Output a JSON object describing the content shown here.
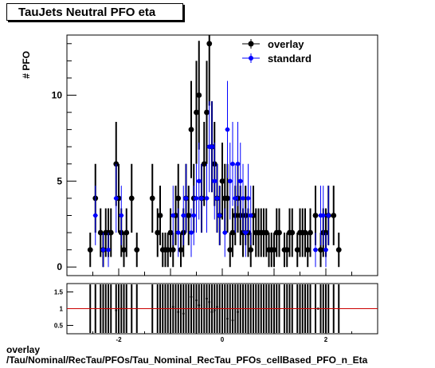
{
  "title": "TauJets Neutral PFO eta",
  "footer": {
    "line1": "overlay",
    "line2": "/Tau/Nominal/RecTau/PFOs/Tau_Nominal_RecTau_PFOs_cellBased_PFO_n_Eta"
  },
  "colors": {
    "overlay": "#000000",
    "standard": "#0000ff",
    "ratio_line": "#cc0000"
  },
  "chart_data": [
    {
      "type": "scatter",
      "ylabel": "# PFO",
      "xlim": [
        -3.0,
        3.0
      ],
      "ylim": [
        -0.5,
        13.5
      ],
      "y_ticks": [
        "0",
        "5",
        "10"
      ],
      "legend": {
        "placement": "top-right"
      },
      "series": [
        {
          "name": "overlay",
          "points": [
            [
              -2.55,
              1
            ],
            [
              -2.45,
              4
            ],
            [
              -2.35,
              2
            ],
            [
              -2.3,
              1
            ],
            [
              -2.25,
              2
            ],
            [
              -2.2,
              2
            ],
            [
              -2.15,
              2
            ],
            [
              -2.05,
              6
            ],
            [
              -2.0,
              4
            ],
            [
              -1.95,
              2
            ],
            [
              -1.9,
              1
            ],
            [
              -1.85,
              2
            ],
            [
              -1.75,
              4
            ],
            [
              -1.65,
              1
            ],
            [
              -1.35,
              4
            ],
            [
              -1.25,
              2
            ],
            [
              -1.2,
              3
            ],
            [
              -1.15,
              1
            ],
            [
              -1.1,
              1
            ],
            [
              -1.05,
              1
            ],
            [
              -1.0,
              2
            ],
            [
              -0.95,
              1
            ],
            [
              -0.9,
              3
            ],
            [
              -0.85,
              4
            ],
            [
              -0.8,
              1
            ],
            [
              -0.75,
              2
            ],
            [
              -0.7,
              4
            ],
            [
              -0.65,
              3
            ],
            [
              -0.6,
              8
            ],
            [
              -0.55,
              4
            ],
            [
              -0.5,
              9
            ],
            [
              -0.45,
              10
            ],
            [
              -0.4,
              4
            ],
            [
              -0.35,
              6
            ],
            [
              -0.3,
              9
            ],
            [
              -0.25,
              13
            ],
            [
              -0.2,
              7
            ],
            [
              -0.15,
              6
            ],
            [
              -0.1,
              4
            ],
            [
              -0.05,
              3
            ],
            [
              0.0,
              5
            ],
            [
              0.05,
              4
            ],
            [
              0.1,
              4
            ],
            [
              0.15,
              1
            ],
            [
              0.2,
              2
            ],
            [
              0.25,
              3
            ],
            [
              0.3,
              4
            ],
            [
              0.35,
              3
            ],
            [
              0.4,
              2
            ],
            [
              0.45,
              3
            ],
            [
              0.5,
              2
            ],
            [
              0.55,
              1
            ],
            [
              0.6,
              3
            ],
            [
              0.65,
              2
            ],
            [
              0.7,
              2
            ],
            [
              0.75,
              2
            ],
            [
              0.8,
              2
            ],
            [
              0.85,
              2
            ],
            [
              0.9,
              1
            ],
            [
              0.95,
              1
            ],
            [
              1.0,
              1
            ],
            [
              1.05,
              2
            ],
            [
              1.1,
              2
            ],
            [
              1.2,
              1
            ],
            [
              1.25,
              1
            ],
            [
              1.3,
              2
            ],
            [
              1.35,
              2
            ],
            [
              1.45,
              1
            ],
            [
              1.5,
              2
            ],
            [
              1.55,
              2
            ],
            [
              1.6,
              2
            ],
            [
              1.65,
              1
            ],
            [
              1.7,
              2
            ],
            [
              1.8,
              3
            ],
            [
              1.9,
              1
            ],
            [
              1.95,
              2
            ],
            [
              2.0,
              2
            ],
            [
              2.05,
              3
            ],
            [
              2.15,
              3
            ],
            [
              2.25,
              1
            ]
          ]
        },
        {
          "name": "standard",
          "points": [
            [
              -2.45,
              3
            ],
            [
              -2.3,
              1
            ],
            [
              -2.2,
              1
            ],
            [
              -2.05,
              4
            ],
            [
              -1.95,
              3
            ],
            [
              -0.95,
              3
            ],
            [
              -0.85,
              2
            ],
            [
              -0.75,
              3
            ],
            [
              -0.7,
              4
            ],
            [
              -0.6,
              2
            ],
            [
              -0.55,
              3
            ],
            [
              -0.5,
              4
            ],
            [
              -0.45,
              5
            ],
            [
              -0.4,
              4
            ],
            [
              -0.3,
              4
            ],
            [
              -0.25,
              7
            ],
            [
              -0.2,
              7
            ],
            [
              -0.15,
              5
            ],
            [
              -0.1,
              4
            ],
            [
              -0.05,
              3
            ],
            [
              0.05,
              2
            ],
            [
              0.1,
              8
            ],
            [
              0.15,
              5
            ],
            [
              0.2,
              6
            ],
            [
              0.25,
              4
            ],
            [
              0.3,
              6
            ],
            [
              0.35,
              5
            ],
            [
              0.4,
              4
            ],
            [
              0.45,
              2
            ],
            [
              0.5,
              4
            ],
            [
              0.55,
              3
            ],
            [
              1.8,
              1
            ],
            [
              1.9,
              3
            ],
            [
              1.95,
              3
            ],
            [
              2.0,
              1
            ],
            [
              2.05,
              3
            ]
          ]
        }
      ]
    },
    {
      "type": "scatter",
      "xlim": [
        -3.0,
        3.0
      ],
      "ylim": [
        0.25,
        1.75
      ],
      "x_ticks": [
        "-2",
        "0",
        "2"
      ],
      "y_ticks": [
        "0.5",
        "1",
        "1.5"
      ],
      "reference_line": 1.0,
      "series": [
        {
          "points": [
            [
              -2.2,
              1.0
            ],
            [
              -2.05,
              0.95
            ],
            [
              -1.95,
              1.0
            ],
            [
              -0.95,
              1.05
            ],
            [
              -0.85,
              0.9
            ],
            [
              -0.75,
              0.85
            ],
            [
              -0.6,
              1.35
            ],
            [
              -0.5,
              1.25
            ],
            [
              -0.45,
              1.1
            ],
            [
              -0.3,
              1.3
            ],
            [
              -0.25,
              1.2
            ],
            [
              -0.2,
              0.9
            ],
            [
              -0.15,
              0.95
            ],
            [
              -0.1,
              1.05
            ],
            [
              0.1,
              0.7
            ],
            [
              0.2,
              0.65
            ],
            [
              0.3,
              0.9
            ],
            [
              1.85,
              1.0
            ]
          ]
        }
      ]
    }
  ]
}
